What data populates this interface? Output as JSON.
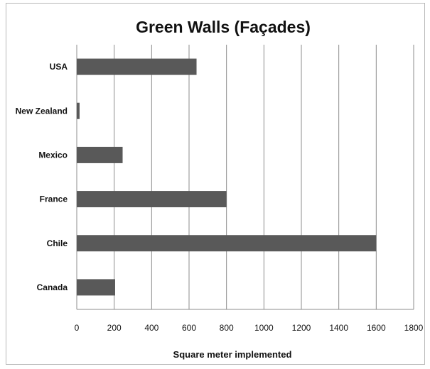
{
  "chart_data": {
    "type": "bar",
    "orientation": "horizontal",
    "title": "Green Walls (Façades)",
    "xlabel": "Square meter implemented",
    "ylabel": "",
    "categories": [
      "USA",
      "New Zealand",
      "Mexico",
      "France",
      "Chile",
      "Canada"
    ],
    "values": [
      640,
      15,
      245,
      800,
      1600,
      205
    ],
    "xlim": [
      0,
      1800
    ],
    "xticks": [
      0,
      200,
      400,
      600,
      800,
      1000,
      1200,
      1400,
      1600,
      1800
    ],
    "grid": "vertical",
    "legend": "none",
    "bar_color": "#595959",
    "grid_color": "#8c8c8c"
  }
}
